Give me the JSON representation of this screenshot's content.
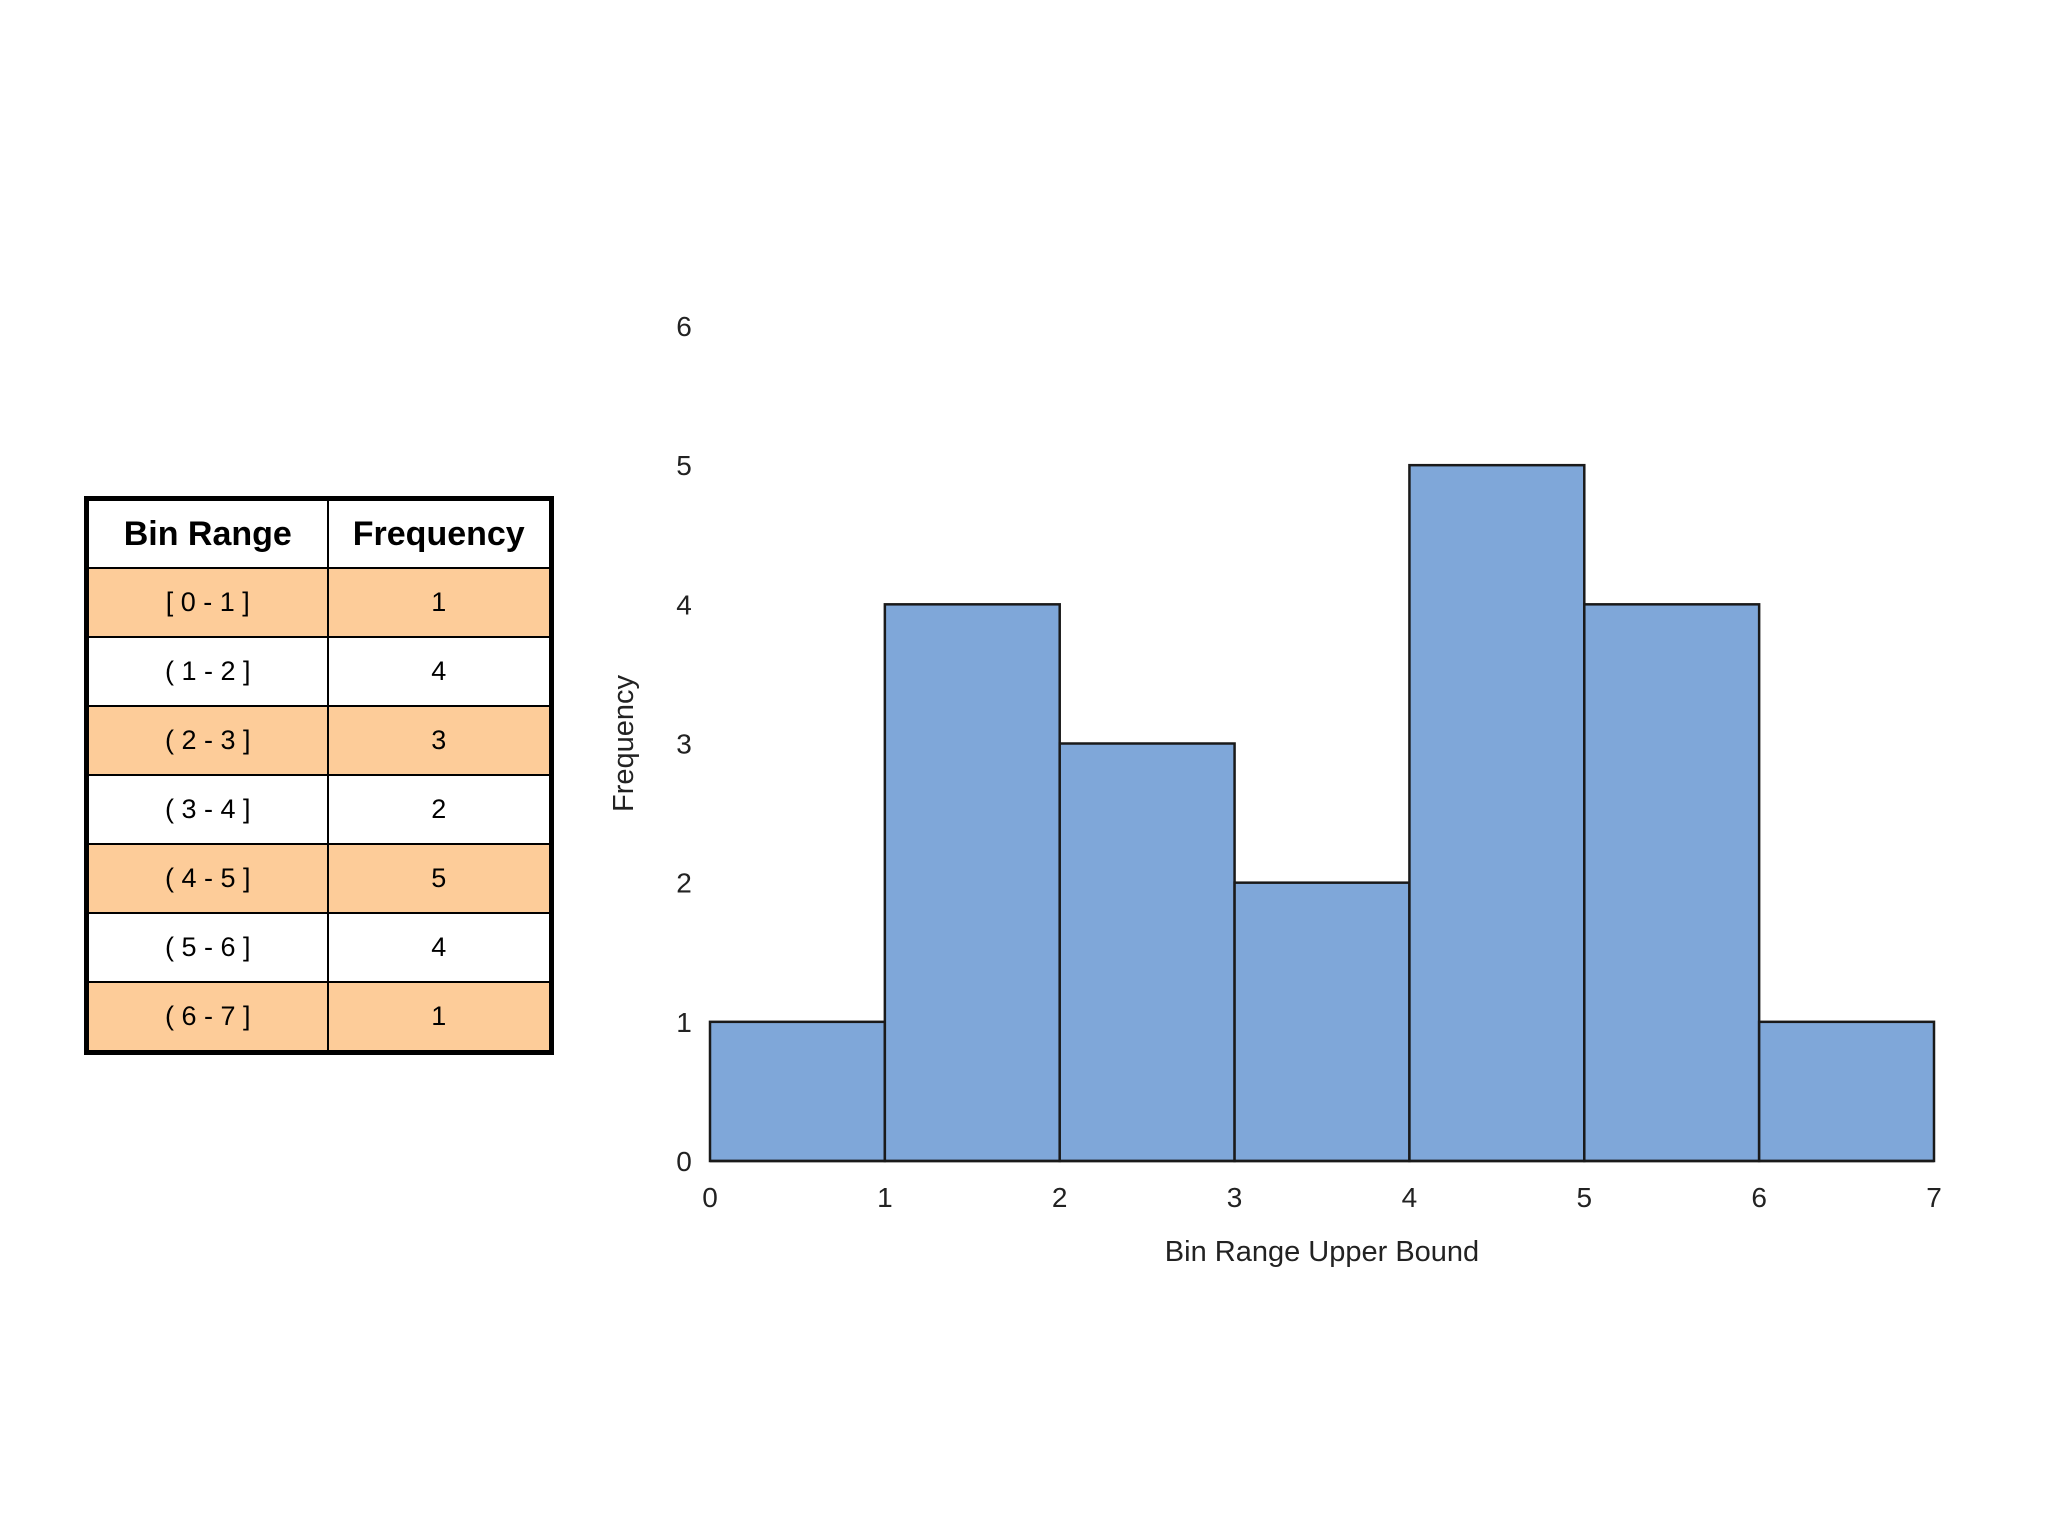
{
  "table": {
    "headers": [
      "Bin Range",
      "Frequency"
    ],
    "rows": [
      {
        "range": "[ 0 - 1 ]",
        "frequency": "1"
      },
      {
        "range": "( 1 - 2 ]",
        "frequency": "4"
      },
      {
        "range": "( 2 - 3 ]",
        "frequency": "3"
      },
      {
        "range": "( 3 - 4 ]",
        "frequency": "2"
      },
      {
        "range": "( 4 - 5 ]",
        "frequency": "5"
      },
      {
        "range": "( 5 - 6 ]",
        "frequency": "4"
      },
      {
        "range": "( 6 - 7 ]",
        "frequency": "1"
      }
    ],
    "shade_color": "#fdcc99"
  },
  "chart_data": {
    "type": "bar",
    "bins": [
      [
        0,
        1
      ],
      [
        1,
        2
      ],
      [
        2,
        3
      ],
      [
        3,
        4
      ],
      [
        4,
        5
      ],
      [
        5,
        6
      ],
      [
        6,
        7
      ]
    ],
    "values": [
      1,
      4,
      3,
      2,
      5,
      4,
      1
    ],
    "xlabel": "Bin Range Upper Bound",
    "ylabel": "Frequency",
    "xlim": [
      0,
      7
    ],
    "ylim": [
      0,
      6
    ],
    "x_ticks": [
      "0",
      "1",
      "2",
      "3",
      "4",
      "5",
      "6",
      "7"
    ],
    "y_ticks": [
      "0",
      "1",
      "2",
      "3",
      "4",
      "5",
      "6"
    ],
    "bar_color": "#7fa7d9",
    "grid": false,
    "legend": "none"
  }
}
